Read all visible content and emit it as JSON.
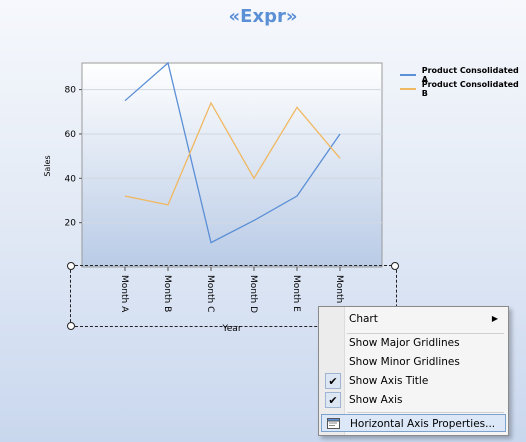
{
  "title": "«Expr»",
  "chart_data": {
    "type": "line",
    "categories": [
      "Month A",
      "Month B",
      "Month C",
      "Month D",
      "Month E",
      "Month F"
    ],
    "series": [
      {
        "name": "Product Consolidated A",
        "color": "#5b8fd6",
        "values": [
          75,
          92,
          11,
          21,
          32,
          60
        ]
      },
      {
        "name": "Product Consolidated B",
        "color": "#f0b860",
        "values": [
          32,
          28,
          74,
          40,
          72,
          49
        ]
      }
    ],
    "yticks": [
      20,
      40,
      60,
      80
    ],
    "ylim": [
      0,
      92
    ],
    "ylabel": "Sales",
    "xlabel": "Year",
    "grid": "horizontal",
    "legend_position": "top-right"
  },
  "context_menu": {
    "items": [
      {
        "label": "Chart",
        "submenu": true,
        "checked": false
      },
      {
        "label": "Show Major Gridlines",
        "checked": false
      },
      {
        "label": "Show Minor Gridlines",
        "checked": false
      },
      {
        "label": "Show Axis Title",
        "checked": true
      },
      {
        "label": "Show Axis",
        "checked": true
      },
      {
        "label": "Horizontal Axis Properties...",
        "highlighted": true,
        "icon": "properties-icon"
      }
    ]
  }
}
